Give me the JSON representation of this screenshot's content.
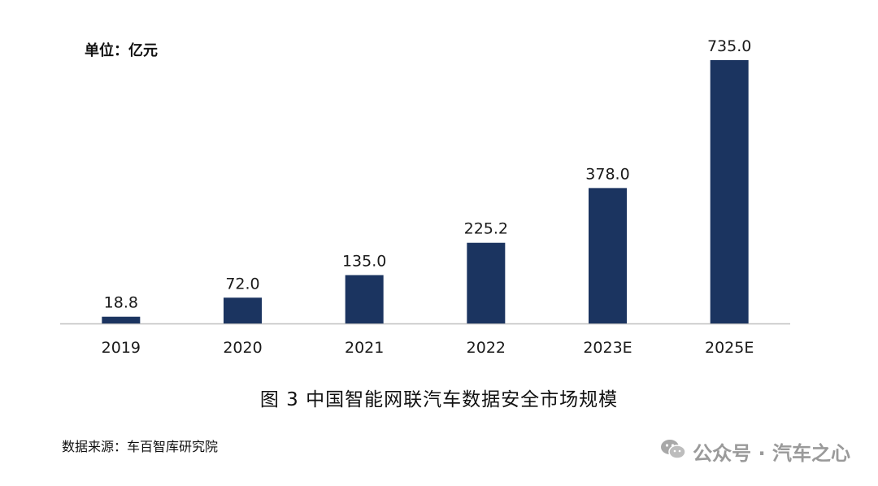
{
  "unit_label": "单位：亿元",
  "caption": "图 3 中国智能网联汽车数据安全市场规模",
  "source": "数据来源：车百智库研究院",
  "watermark": {
    "icon": "wechat-icon",
    "text": "公众号 · 汽车之心"
  },
  "colors": {
    "bar": "#1b3460",
    "axis": "#bfbfbf"
  },
  "chart_data": {
    "type": "bar",
    "categories": [
      "2019",
      "2020",
      "2021",
      "2022",
      "2023E",
      "2025E"
    ],
    "values": [
      18.8,
      72.0,
      135.0,
      225.2,
      378.0,
      735.0
    ],
    "value_labels": [
      "18.8",
      "72.0",
      "135.0",
      "225.2",
      "378.0",
      "735.0"
    ],
    "title": "",
    "xlabel": "",
    "ylabel": "单位：亿元",
    "ylim": [
      0,
      735.0
    ],
    "grid": false,
    "legend": "none"
  }
}
